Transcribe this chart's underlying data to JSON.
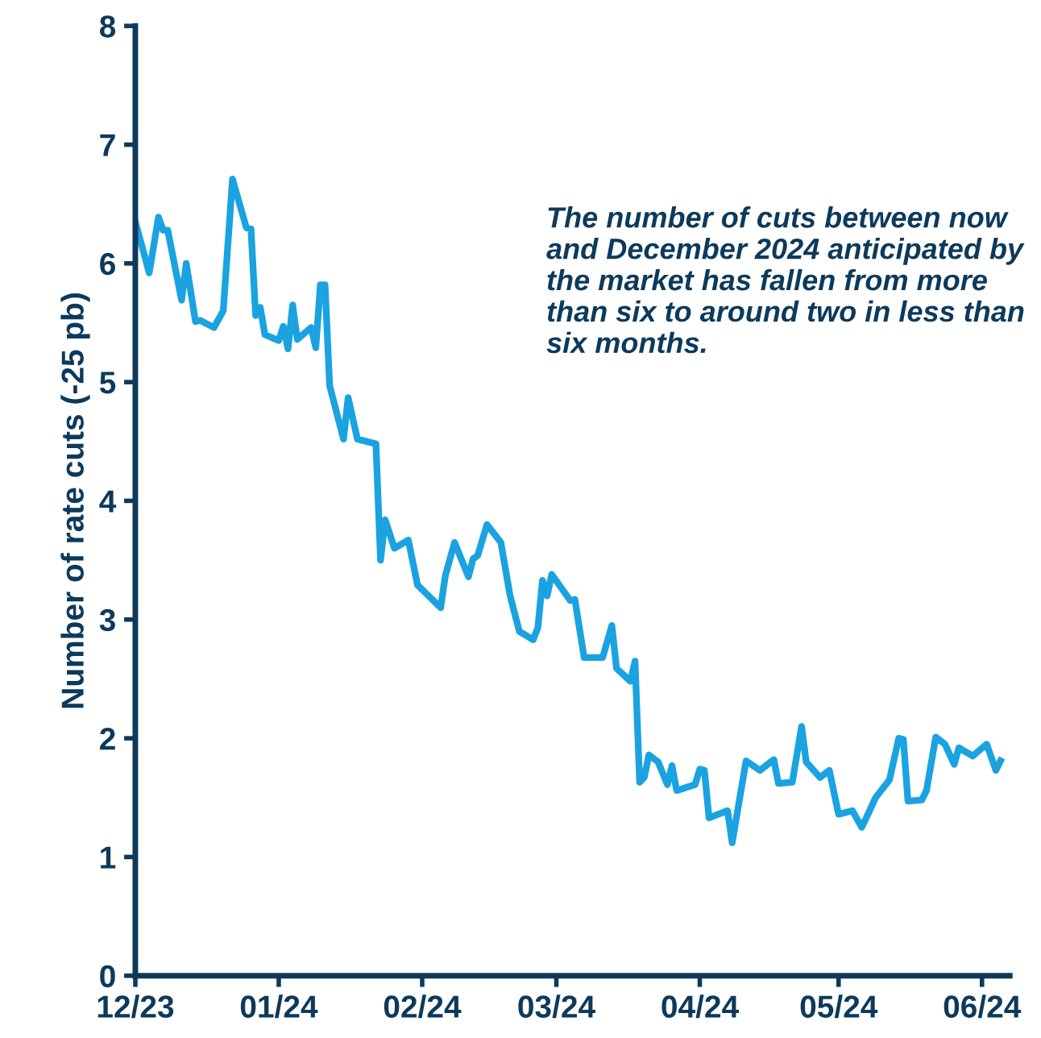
{
  "chart_data": {
    "type": "line",
    "ylabel": "Number of rate cuts (-25 pb)",
    "annotations": [
      "The number of cuts between now and December 2024 anticipated by the market has fallen from more than six to around two in less than six months."
    ],
    "x": [
      "2023-12-01",
      "2023-12-04",
      "2023-12-06",
      "2023-12-07",
      "2023-12-08",
      "2023-12-11",
      "2023-12-12",
      "2023-12-14",
      "2023-12-15",
      "2023-12-18",
      "2023-12-20",
      "2023-12-22",
      "2023-12-25",
      "2023-12-26",
      "2023-12-27",
      "2023-12-28",
      "2023-12-29",
      "2024-01-01",
      "2024-01-02",
      "2024-01-03",
      "2024-01-04",
      "2024-01-05",
      "2024-01-08",
      "2024-01-09",
      "2024-01-10",
      "2024-01-11",
      "2024-01-12",
      "2024-01-15",
      "2024-01-16",
      "2024-01-18",
      "2024-01-22",
      "2024-01-23",
      "2024-01-24",
      "2024-01-26",
      "2024-01-29",
      "2024-01-31",
      "2024-02-05",
      "2024-02-06",
      "2024-02-08",
      "2024-02-11",
      "2024-02-12",
      "2024-02-13",
      "2024-02-15",
      "2024-02-18",
      "2024-02-20",
      "2024-02-22",
      "2024-02-25",
      "2024-02-26",
      "2024-02-27",
      "2024-02-28",
      "2024-02-29",
      "2024-03-04",
      "2024-03-05",
      "2024-03-07",
      "2024-03-11",
      "2024-03-13",
      "2024-03-14",
      "2024-03-17",
      "2024-03-18",
      "2024-03-19",
      "2024-03-20",
      "2024-03-21",
      "2024-03-23",
      "2024-03-25",
      "2024-03-26",
      "2024-03-27",
      "2024-03-31",
      "2024-04-01",
      "2024-04-02",
      "2024-04-03",
      "2024-04-07",
      "2024-04-08",
      "2024-04-11",
      "2024-04-14",
      "2024-04-17",
      "2024-04-18",
      "2024-04-21",
      "2024-04-23",
      "2024-04-24",
      "2024-04-27",
      "2024-04-29",
      "2024-05-01",
      "2024-05-04",
      "2024-05-06",
      "2024-05-07",
      "2024-05-09",
      "2024-05-12",
      "2024-05-14",
      "2024-05-15",
      "2024-05-16",
      "2024-05-19",
      "2024-05-20",
      "2024-05-22",
      "2024-05-24",
      "2024-05-26",
      "2024-05-27",
      "2024-05-30",
      "2024-06-02",
      "2024-06-04",
      "2024-06-05"
    ],
    "series": [
      {
        "color": "#1aa3e0",
        "values": [
          6.35,
          5.92,
          6.39,
          6.28,
          6.28,
          5.69,
          6.0,
          5.51,
          5.52,
          5.46,
          5.6,
          6.71,
          6.3,
          6.29,
          5.56,
          5.63,
          5.4,
          5.35,
          5.47,
          5.28,
          5.65,
          5.36,
          5.46,
          5.29,
          5.82,
          5.82,
          4.97,
          4.52,
          4.87,
          4.52,
          4.48,
          3.5,
          3.84,
          3.6,
          3.67,
          3.29,
          3.1,
          3.37,
          3.65,
          3.36,
          3.51,
          3.54,
          3.8,
          3.65,
          3.2,
          2.9,
          2.83,
          2.93,
          3.33,
          3.2,
          3.38,
          3.16,
          3.17,
          2.68,
          2.68,
          2.95,
          2.59,
          2.48,
          2.65,
          1.63,
          1.67,
          1.86,
          1.8,
          1.61,
          1.77,
          1.56,
          1.61,
          1.74,
          1.73,
          1.33,
          1.39,
          1.12,
          1.81,
          1.73,
          1.82,
          1.62,
          1.63,
          2.1,
          1.8,
          1.67,
          1.73,
          1.36,
          1.39,
          1.25,
          1.33,
          1.5,
          1.65,
          2.0,
          1.99,
          1.47,
          1.48,
          1.56,
          2.01,
          1.95,
          1.78,
          1.92,
          1.85,
          1.95,
          1.73,
          1.81
        ]
      }
    ],
    "xlim": [
      "2023-12-01",
      "2024-06-07"
    ],
    "xticks": [
      {
        "value": "2023-12-01",
        "label": "12/23"
      },
      {
        "value": "2024-01-01",
        "label": "01/24"
      },
      {
        "value": "2024-02-01",
        "label": "02/24"
      },
      {
        "value": "2024-03-01",
        "label": "03/24"
      },
      {
        "value": "2024-04-01",
        "label": "04/24"
      },
      {
        "value": "2024-05-01",
        "label": "05/24"
      },
      {
        "value": "2024-06-01",
        "label": "06/24"
      }
    ],
    "ylim": [
      0,
      8
    ],
    "yticks": [
      0,
      1,
      2,
      3,
      4,
      5,
      6,
      7,
      8
    ],
    "grid": false,
    "legend": false,
    "marker": "none",
    "line_style": "solid"
  }
}
